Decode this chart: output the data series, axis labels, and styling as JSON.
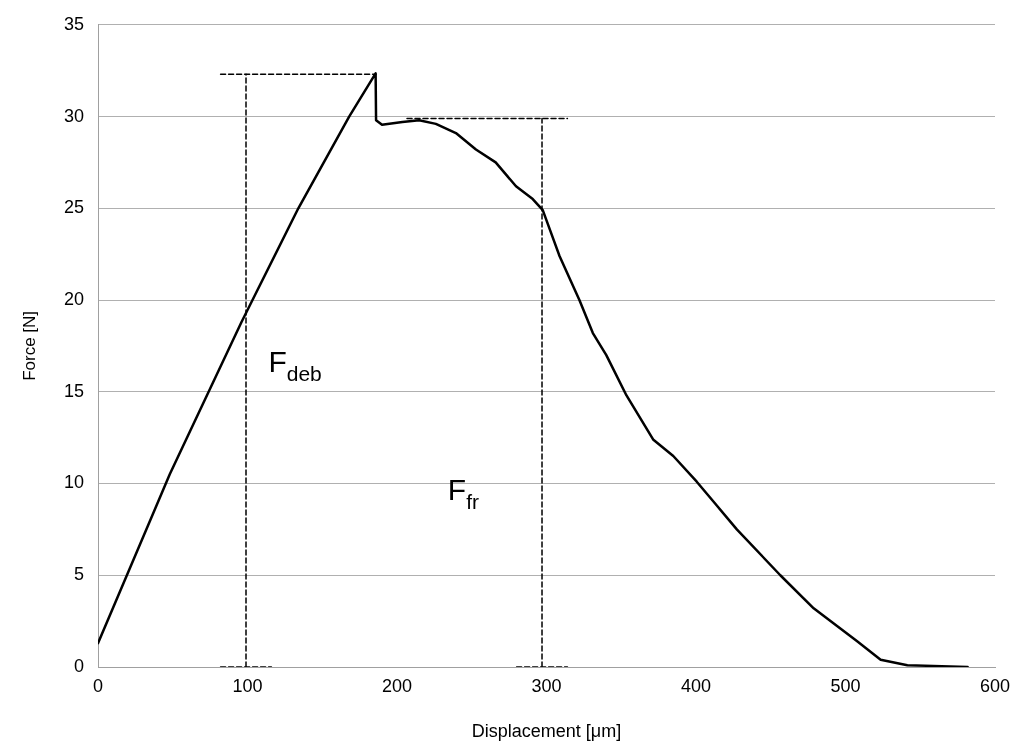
{
  "chart_data": {
    "type": "line",
    "xlabel": "Displacement [μm]",
    "ylabel": "Force [N]",
    "xlim": [
      0,
      600
    ],
    "xticks": [
      0,
      100,
      200,
      300,
      400,
      500,
      600
    ],
    "ylim": [
      0,
      35
    ],
    "yticks": [
      0,
      5,
      10,
      15,
      20,
      25,
      30,
      35
    ],
    "grid": "y",
    "legend": false,
    "marker": "none",
    "series": [
      {
        "color": "#000000",
        "line_style": "solid",
        "x": [
          0,
          48,
          96,
          134,
          168,
          185.7,
          186,
          190,
          203.6,
          214.8,
          226,
          239.4,
          252.8,
          266,
          279.6,
          290.8,
          297.5,
          308.7,
          322,
          331,
          340,
          353.5,
          371.3,
          384.8,
          400.5,
          413.9,
          427.3,
          456.4,
          478.7,
          507.8,
          523.5,
          541.4,
          581.7
        ],
        "values": [
          1.3,
          10.5,
          18.8,
          25,
          30,
          32.35,
          29.8,
          29.55,
          29.7,
          29.8,
          29.6,
          29.1,
          28.2,
          27.5,
          26.2,
          25.5,
          24.9,
          22.4,
          20,
          18.2,
          17,
          14.8,
          12.4,
          11.5,
          10.1,
          8.8,
          7.5,
          5,
          3.2,
          1.4,
          0.4,
          0.1,
          0
        ]
      },
      {
        "color": "#000000",
        "line_style": "dashed",
        "x": [
          82,
          186
        ],
        "values": [
          32.3,
          32.3
        ]
      },
      {
        "color": "#000000",
        "line_style": "dashed",
        "x": [
          99,
          99
        ],
        "values": [
          0,
          32.3
        ]
      },
      {
        "color": "#000000",
        "line_style": "dashed",
        "x": [
          82,
          116
        ],
        "values": [
          0,
          0
        ]
      },
      {
        "color": "#000000",
        "line_style": "dashed",
        "x": [
          206.7,
          314
        ],
        "values": [
          29.9,
          29.9
        ]
      },
      {
        "color": "#000000",
        "line_style": "dashed",
        "x": [
          297,
          297
        ],
        "values": [
          0,
          29.9
        ]
      },
      {
        "color": "#000000",
        "line_style": "dashed",
        "x": [
          280,
          314
        ],
        "values": [
          0,
          0
        ]
      }
    ],
    "annotations": [
      "F$_{deb}$",
      "F$_{fr}$"
    ]
  }
}
